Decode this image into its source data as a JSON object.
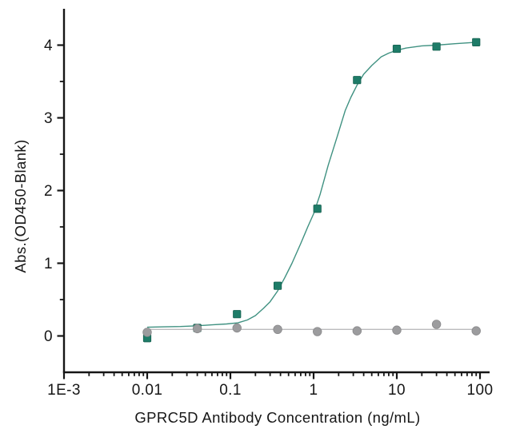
{
  "chart_data": {
    "type": "scatter",
    "title": "",
    "xlabel": "GPRC5D Antibody Concentration (ng/mL)",
    "ylabel": "Abs.(OD450-Blank)",
    "x_scale": "log10",
    "xlim": [
      0.001,
      100
    ],
    "ylim": [
      -0.5,
      4.5
    ],
    "grid": false,
    "legend_position": "none",
    "axis_color": "#161616",
    "x_ticks": [
      {
        "value": 0.001,
        "label": "1E-3"
      },
      {
        "value": 0.01,
        "label": "0.01"
      },
      {
        "value": 0.1,
        "label": "0.1"
      },
      {
        "value": 1,
        "label": "1"
      },
      {
        "value": 10,
        "label": "10"
      },
      {
        "value": 100,
        "label": "100"
      }
    ],
    "y_ticks": [
      {
        "value": 0,
        "label": "0"
      },
      {
        "value": 1,
        "label": "1"
      },
      {
        "value": 2,
        "label": "2"
      },
      {
        "value": 3,
        "label": "3"
      },
      {
        "value": 4,
        "label": "4"
      }
    ],
    "y_minor_ticks": [
      0.5,
      1.5,
      2.5,
      3.5
    ],
    "series": [
      {
        "name": "teal-squares-antibody-binding",
        "marker": "square",
        "marker_color": "#1e7c68",
        "marker_edge_color": "#15604f",
        "line_color": "#3f9181",
        "x": [
          0.01,
          0.04,
          0.12,
          0.37,
          1.11,
          3.33,
          10,
          30,
          90
        ],
        "y": [
          -0.03,
          0.11,
          0.3,
          0.69,
          1.75,
          3.52,
          3.95,
          3.98,
          4.04
        ],
        "fit_curve": [
          [
            0.01,
            0.12
          ],
          [
            0.016,
            0.125
          ],
          [
            0.025,
            0.13
          ],
          [
            0.04,
            0.14
          ],
          [
            0.063,
            0.155
          ],
          [
            0.09,
            0.165
          ],
          [
            0.123,
            0.18
          ],
          [
            0.16,
            0.22
          ],
          [
            0.2,
            0.28
          ],
          [
            0.25,
            0.38
          ],
          [
            0.3,
            0.47
          ],
          [
            0.37,
            0.62
          ],
          [
            0.45,
            0.8
          ],
          [
            0.55,
            1.0
          ],
          [
            0.7,
            1.27
          ],
          [
            0.85,
            1.5
          ],
          [
            1.0,
            1.68
          ],
          [
            1.2,
            1.95
          ],
          [
            1.5,
            2.35
          ],
          [
            1.93,
            2.75
          ],
          [
            2.4,
            3.1
          ],
          [
            2.8,
            3.28
          ],
          [
            3.33,
            3.45
          ],
          [
            4.0,
            3.6
          ],
          [
            5.0,
            3.72
          ],
          [
            6.5,
            3.84
          ],
          [
            8.0,
            3.89
          ],
          [
            10,
            3.93
          ],
          [
            13,
            3.96
          ],
          [
            20,
            3.99
          ],
          [
            30,
            4.0
          ],
          [
            50,
            4.02
          ],
          [
            90,
            4.04
          ]
        ]
      },
      {
        "name": "gray-circles-control",
        "marker": "circle",
        "marker_color": "#9c9c9e",
        "marker_edge_color": "#8a8a8c",
        "line_color": "#bbbbbd",
        "x": [
          0.01,
          0.04,
          0.12,
          0.37,
          1.11,
          3.33,
          10,
          30,
          90
        ],
        "y": [
          0.05,
          0.1,
          0.11,
          0.09,
          0.06,
          0.07,
          0.08,
          0.16,
          0.07
        ],
        "fit_curve": [
          [
            0.01,
            0.09
          ],
          [
            90,
            0.09
          ]
        ]
      }
    ]
  }
}
